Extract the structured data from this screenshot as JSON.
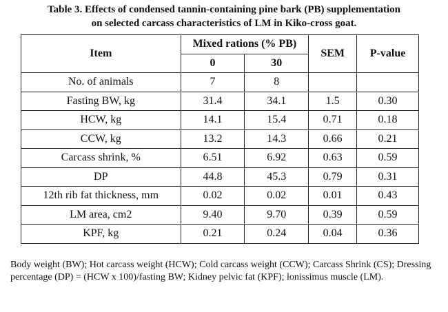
{
  "caption": {
    "line1": "Table 3. Effects of condensed tannin-containing pine bark (PB) supplementation",
    "line2": "on selected carcass characteristics of LM in Kiko-cross goat."
  },
  "table": {
    "headers": {
      "item": "Item",
      "group": "Mixed rations (% PB)",
      "sub": [
        "0",
        "30"
      ],
      "sem": "SEM",
      "pvalue": "P-value"
    },
    "rows": [
      [
        "No. of animals",
        "7",
        "8",
        "",
        ""
      ],
      [
        "Fasting BW, kg",
        "31.4",
        "34.1",
        "1.5",
        "0.30"
      ],
      [
        "HCW, kg",
        "14.1",
        "15.4",
        "0.71",
        "0.18"
      ],
      [
        "CCW, kg",
        "13.2",
        "14.3",
        "0.66",
        "0.21"
      ],
      [
        "Carcass shrink, %",
        "6.51",
        "6.92",
        "0.63",
        "0.59"
      ],
      [
        "DP",
        "44.8",
        "45.3",
        "0.79",
        "0.31"
      ],
      [
        "12th rib fat thickness, mm",
        "0.02",
        "0.02",
        "0.01",
        "0.43"
      ],
      [
        "LM area, cm2",
        "9.40",
        "9.70",
        "0.39",
        "0.59"
      ],
      [
        "KPF, kg",
        "0.21",
        "0.24",
        "0.04",
        "0.36"
      ]
    ]
  },
  "footnote": "Body weight (BW); Hot carcass weight (HCW); Cold carcass weight (CCW); Carcass Shrink (CS); Dressing percentage (DP) = (HCW x 100)/fasting BW; Kidney pelvic fat (KPF); lonissimus muscle (LM)."
}
